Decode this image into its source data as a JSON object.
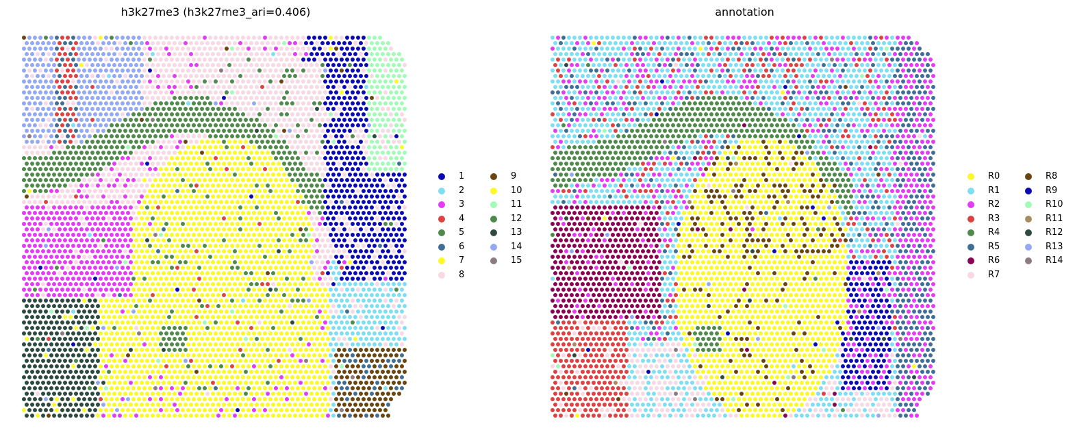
{
  "chart_data": [
    {
      "type": "scatter",
      "title": "h3k27me3 (h3k27me3_ari=0.406)",
      "legend_placement": "right",
      "legend_columns": 2,
      "grid": false,
      "axes_visible": false,
      "categories": [
        {
          "label": "1",
          "color": "#0b0ab0"
        },
        {
          "label": "2",
          "color": "#80def4"
        },
        {
          "label": "3",
          "color": "#e43cf4"
        },
        {
          "label": "4",
          "color": "#dc4444"
        },
        {
          "label": "5",
          "color": "#4e8a4a"
        },
        {
          "label": "6",
          "color": "#3f6f96"
        },
        {
          "label": "7",
          "color": "#fcf82a"
        },
        {
          "label": "8",
          "color": "#f7d8e4"
        },
        {
          "label": "9",
          "color": "#6c4410"
        },
        {
          "label": "10",
          "color": "#fcf82a"
        },
        {
          "label": "11",
          "color": "#a2fcb8"
        },
        {
          "label": "12",
          "color": "#4e8a4a"
        },
        {
          "label": "13",
          "color": "#2c4a40"
        },
        {
          "label": "14",
          "color": "#94a8f4"
        },
        {
          "label": "15",
          "color": "#8c7c80"
        }
      ]
    },
    {
      "type": "scatter",
      "title": "annotation",
      "legend_placement": "right",
      "legend_columns": 2,
      "grid": false,
      "axes_visible": false,
      "categories": [
        {
          "label": "R0",
          "color": "#fcf82a"
        },
        {
          "label": "R1",
          "color": "#80def4"
        },
        {
          "label": "R2",
          "color": "#e43cf4"
        },
        {
          "label": "R3",
          "color": "#dc4444"
        },
        {
          "label": "R4",
          "color": "#4e8a4a"
        },
        {
          "label": "R5",
          "color": "#3f6f96"
        },
        {
          "label": "R6",
          "color": "#8a0454"
        },
        {
          "label": "R7",
          "color": "#f7d8e4"
        },
        {
          "label": "R8",
          "color": "#6c4410"
        },
        {
          "label": "R9",
          "color": "#0b0ab0"
        },
        {
          "label": "R10",
          "color": "#a2fcb8"
        },
        {
          "label": "R11",
          "color": "#a68e60"
        },
        {
          "label": "R12",
          "color": "#2c4a40"
        },
        {
          "label": "R13",
          "color": "#94a8f4"
        },
        {
          "label": "R14",
          "color": "#8c7c80"
        }
      ]
    }
  ]
}
